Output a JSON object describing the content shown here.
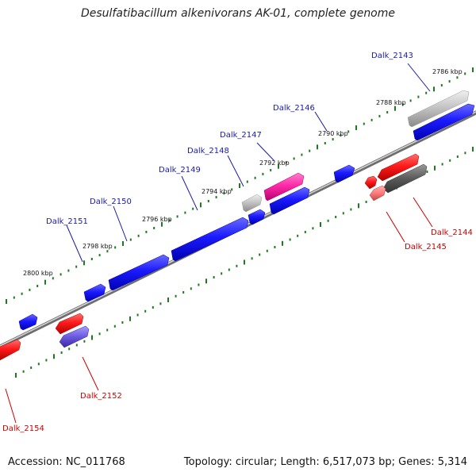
{
  "title": "Desulfatibacillum alkenivorans AK-01, complete genome",
  "footer": {
    "accession": "Accession: NC_011768",
    "summary": "Topology: circular; Length: 6,517,073 bp; Genes: 5,314"
  },
  "colors": {
    "forward_label": "#1a1aa6",
    "reverse_label": "#cc0000",
    "backbone": "#8a8a8a",
    "tick": "#1e7a1e"
  },
  "scale": {
    "unit": "kbp",
    "labels": [
      "2786 kbp",
      "2788 kbp",
      "2790 kbp",
      "2792 kbp",
      "2794 kbp",
      "2796 kbp",
      "2798 kbp",
      "2800 kbp"
    ]
  },
  "genes": {
    "forward": [
      {
        "label": "Dalk_2143",
        "color": "#c0c0c0"
      },
      {
        "label": "Dalk_2146",
        "color": "#1a1aff"
      },
      {
        "label": "Dalk_2147",
        "color": "#ff2aa8"
      },
      {
        "label": "Dalk_2148",
        "color": "#b8b8b8"
      },
      {
        "label": "Dalk_2149",
        "color": "#1a1aff"
      },
      {
        "label": "Dalk_2150",
        "color": "#1a1aff"
      },
      {
        "label": "Dalk_2151",
        "color": "#1a1aff"
      }
    ],
    "reverse": [
      {
        "label": "Dalk_2144",
        "color": "#ff1a1a"
      },
      {
        "label": "Dalk_2145",
        "color": "#ff7a7a"
      },
      {
        "label": "Dalk_2152",
        "color": "#ff1a1a"
      },
      {
        "label": "Dalk_2154",
        "color": "#ff1a1a"
      }
    ]
  }
}
